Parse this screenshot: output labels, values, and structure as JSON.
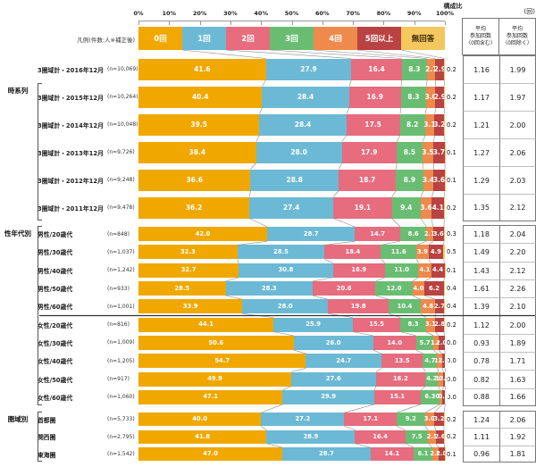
{
  "header": {
    "composition_label": "構成比",
    "unit_label": "(回)",
    "legend_caption": "凡例(件数:人※補正後)",
    "axis_ticks": [
      "0%",
      "10%",
      "20%",
      "30%",
      "40%",
      "50%",
      "60%",
      "70%",
      "80%",
      "90%",
      "100%"
    ],
    "avg_col1": [
      "平均",
      "参加回数",
      "〈0回含む〉"
    ],
    "avg_col2": [
      "平均",
      "参加回数",
      "〈0回除く〉"
    ]
  },
  "chart_data": {
    "type": "bar",
    "stacked": true,
    "orientation": "horizontal",
    "unit": "%",
    "xlim": [
      0,
      100
    ],
    "categories": [
      "0回",
      "1回",
      "2回",
      "3回",
      "4回",
      "5回以上",
      "無回答"
    ],
    "colors": [
      "#F0A800",
      "#6CB9D5",
      "#E66C7E",
      "#69BD72",
      "#ED8A4C",
      "#B94242",
      "#F5C75F"
    ],
    "legend_text_colors": [
      "#fff",
      "#fff",
      "#fff",
      "#fff",
      "#fff",
      "#fff",
      "#3f2c0a"
    ],
    "groups": [
      {
        "label": "時系列",
        "rows": [
          {
            "label": "3圏域計・2016年12月",
            "n": "(n=10,069)",
            "values": [
              "41.6",
              "27.9",
              "16.4",
              "8.3",
              "2.7",
              "2.9",
              "0.2"
            ],
            "avg_incl": "1.16",
            "avg_excl": "1.99"
          },
          {
            "label": "3圏域計・2015年12月",
            "n": "(n=10,264)",
            "values": [
              "40.4",
              "28.4",
              "16.9",
              "8.3",
              "3.0",
              "2.9",
              "0.2"
            ],
            "avg_incl": "1.17",
            "avg_excl": "1.97"
          },
          {
            "label": "3圏域計・2014年12月",
            "n": "(n=10,048)",
            "values": [
              "39.5",
              "28.4",
              "17.5",
              "8.2",
              "3.1",
              "3.2",
              "0.2"
            ],
            "avg_incl": "1.21",
            "avg_excl": "2.00"
          },
          {
            "label": "3圏域計・2013年12月",
            "n": "(n=9,726)",
            "values": [
              "38.4",
              "28.0",
              "17.9",
              "8.5",
              "3.5",
              "3.7",
              "0.1"
            ],
            "avg_incl": "1.27",
            "avg_excl": "2.06"
          },
          {
            "label": "3圏域計・2012年12月",
            "n": "(n=9,248)",
            "values": [
              "36.6",
              "28.8",
              "18.7",
              "8.9",
              "3.4",
              "3.6",
              "0.1"
            ],
            "avg_incl": "1.29",
            "avg_excl": "2.03"
          },
          {
            "label": "3圏域計・2011年12月",
            "n": "(n=9,478)",
            "values": [
              "36.2",
              "27.4",
              "19.1",
              "9.4",
              "3.6",
              "4.1",
              "0.2"
            ],
            "avg_incl": "1.35",
            "avg_excl": "2.12"
          }
        ]
      },
      {
        "label": "性年代別",
        "rows": [
          {
            "label": "男性/20歳代",
            "n": "(n=848)",
            "values": [
              "42.0",
              "28.7",
              "14.7",
              "8.6",
              "2.1",
              "3.6",
              "0.3"
            ],
            "avg_incl": "1.18",
            "avg_excl": "2.04"
          },
          {
            "label": "男性/30歳代",
            "n": "(n=1,037)",
            "values": [
              "32.3",
              "28.5",
              "18.4",
              "11.6",
              "3.9",
              "4.9",
              "0.5"
            ],
            "avg_incl": "1.49",
            "avg_excl": "2.20"
          },
          {
            "label": "男性/40歳代",
            "n": "(n=1,242)",
            "values": [
              "32.7",
              "30.8",
              "16.9",
              "11.0",
              "4.1",
              "4.4",
              "0.1"
            ],
            "avg_incl": "1.43",
            "avg_excl": "2.12"
          },
          {
            "label": "男性/50歳代",
            "n": "(n=933)",
            "values": [
              "28.5",
              "28.3",
              "20.6",
              "12.0",
              "4.0",
              "6.2",
              "0.4"
            ],
            "avg_incl": "1.61",
            "avg_excl": "2.26"
          },
          {
            "label": "男性/60歳代",
            "n": "(n=1,001)",
            "values": [
              "33.9",
              "28.0",
              "19.8",
              "10.4",
              "4.8",
              "2.7",
              "0.4"
            ],
            "avg_incl": "1.39",
            "avg_excl": "2.10"
          },
          {
            "label": "女性/20歳代",
            "n": "(n=816)",
            "values": [
              "44.1",
              "25.9",
              "15.5",
              "8.3",
              "3.1",
              "2.8",
              "0.2"
            ],
            "avg_incl": "1.12",
            "avg_excl": "2.00"
          },
          {
            "label": "女性/30歳代",
            "n": "(n=1,009)",
            "values": [
              "50.6",
              "26.0",
              "14.0",
              "5.7",
              "1.6",
              "2.0",
              "0.0"
            ],
            "avg_incl": "0.93",
            "avg_excl": "1.89"
          },
          {
            "label": "女性/40歳代",
            "n": "(n=1,205)",
            "values": [
              "54.7",
              "24.7",
              "13.5",
              "4.7",
              "1.5",
              "1.0",
              "0.0"
            ],
            "avg_incl": "0.78",
            "avg_excl": "1.71"
          },
          {
            "label": "女性/50歳代",
            "n": "(n=917)",
            "values": [
              "49.9",
              "27.6",
              "16.2",
              "4.2",
              "1.7",
              "0.5",
              "0.0"
            ],
            "avg_incl": "0.82",
            "avg_excl": "1.63"
          },
          {
            "label": "女性/60歳代",
            "n": "(n=1,060)",
            "values": [
              "47.1",
              "29.9",
              "15.1",
              "6.3",
              "0.8",
              "0.9",
              "0.0"
            ],
            "avg_incl": "0.88",
            "avg_excl": "1.66"
          }
        ]
      },
      {
        "label": "圏域別",
        "rows": [
          {
            "label": "首都圏",
            "n": "(n=5,733)",
            "values": [
              "40.0",
              "27.2",
              "17.1",
              "9.2",
              "3.0",
              "3.2",
              "0.2"
            ],
            "avg_incl": "1.24",
            "avg_excl": "2.06"
          },
          {
            "label": "関西圏",
            "n": "(n=2,795)",
            "values": [
              "41.8",
              "28.9",
              "16.4",
              "7.5",
              "2.5",
              "2.6",
              "0.2"
            ],
            "avg_incl": "1.11",
            "avg_excl": "1.92"
          },
          {
            "label": "東海圏",
            "n": "(n=1,542)",
            "values": [
              "47.0",
              "28.7",
              "14.1",
              "6.1",
              "2.0",
              "2.0",
              "0.1"
            ],
            "avg_incl": "0.96",
            "avg_excl": "1.81"
          }
        ]
      }
    ]
  }
}
